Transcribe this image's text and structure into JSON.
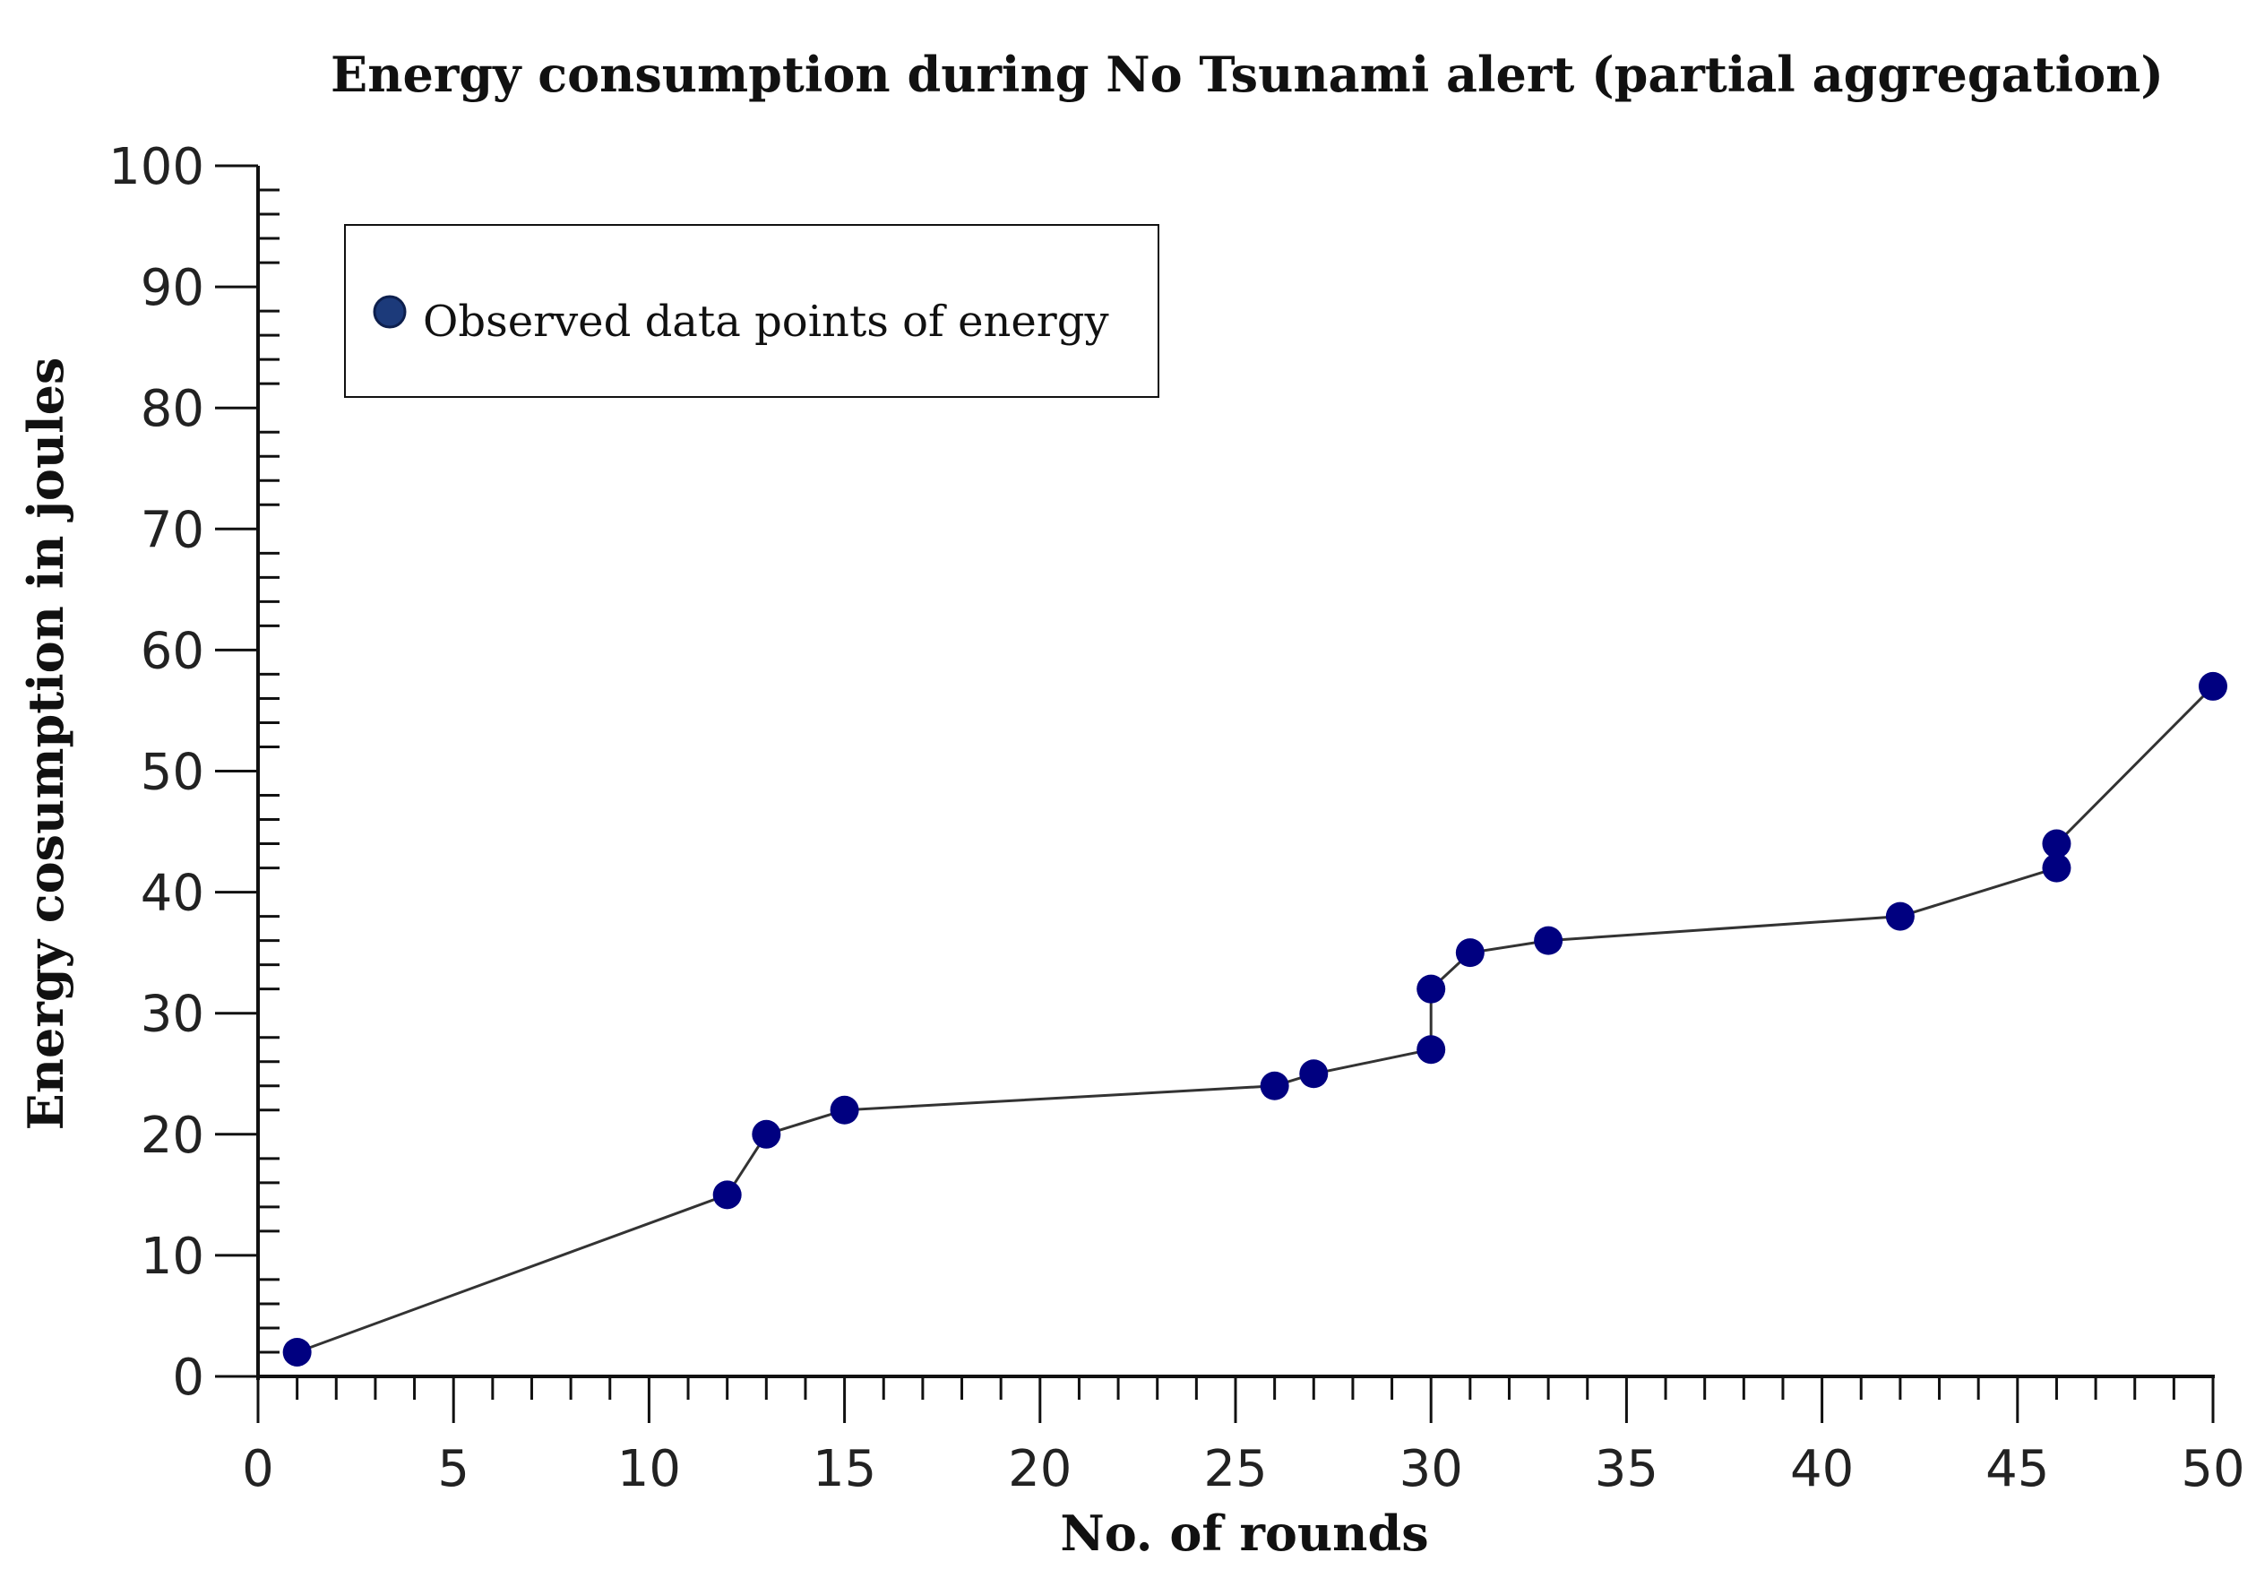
{
  "chart_data": {
    "type": "line",
    "title": "Energy consumption during No Tsunami alert (partial aggregation)",
    "xlabel": "No. of rounds",
    "ylabel": "Energy cosumption in joules",
    "xlim": [
      0,
      50
    ],
    "ylim": [
      0,
      100
    ],
    "x_ticks": [
      "0",
      "5",
      "10",
      "15",
      "20",
      "25",
      "30",
      "35",
      "40",
      "45",
      "50"
    ],
    "y_ticks": [
      "0",
      "10",
      "20",
      "30",
      "40",
      "50",
      "60",
      "70",
      "80",
      "90",
      "100"
    ],
    "legend_position": "top-left",
    "grid": false,
    "series": [
      {
        "name": "Observed data points of energy",
        "color": "#000080",
        "line_color": "#333333",
        "x": [
          1,
          12,
          13,
          15,
          26,
          27,
          30,
          30,
          31,
          33,
          42,
          46,
          46,
          50
        ],
        "y": [
          2,
          15,
          20,
          22,
          24,
          25,
          27,
          32,
          35,
          36,
          38,
          42,
          44,
          57
        ]
      }
    ]
  }
}
